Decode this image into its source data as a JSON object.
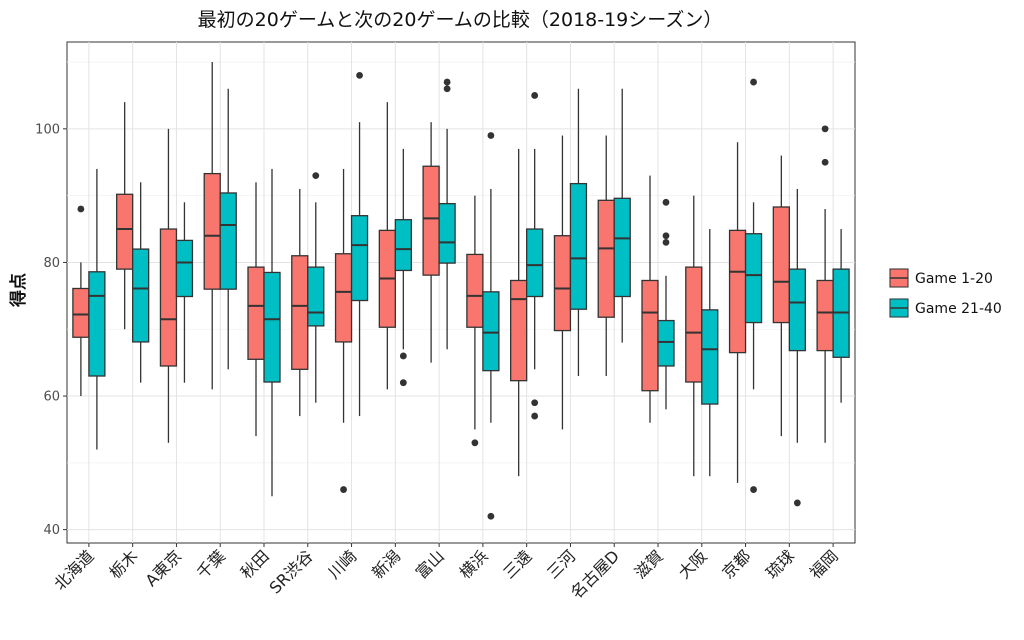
{
  "chart_data": {
    "type": "boxplot",
    "title": "最初の20ゲームと次の20ゲームの比較（2018-19シーズン）",
    "xlabel": "",
    "ylabel": "得点",
    "ylim": [
      38,
      113
    ],
    "yticks": [
      40,
      60,
      80,
      100
    ],
    "grid": true,
    "legend_position": "right",
    "categories": [
      "北海道",
      "栃木",
      "A東京",
      "千葉",
      "秋田",
      "SR渋谷",
      "川崎",
      "新潟",
      "富山",
      "横浜",
      "三遠",
      "三河",
      "名古屋D",
      "滋賀",
      "大阪",
      "京都",
      "琉球",
      "福岡"
    ],
    "series": [
      {
        "name": "Game 1-20",
        "color": "#F8766D",
        "boxes": [
          {
            "min": 60,
            "q1": 68.8,
            "median": 72.2,
            "q3": 76.1,
            "max": 80,
            "outliers": [
              88
            ]
          },
          {
            "min": 70,
            "q1": 79,
            "median": 85,
            "q3": 90.2,
            "max": 104,
            "outliers": []
          },
          {
            "min": 53,
            "q1": 64.5,
            "median": 71.5,
            "q3": 85,
            "max": 100,
            "outliers": []
          },
          {
            "min": 61,
            "q1": 76,
            "median": 84,
            "q3": 93.3,
            "max": 110,
            "outliers": []
          },
          {
            "min": 54,
            "q1": 65.5,
            "median": 73.5,
            "q3": 79.3,
            "max": 92,
            "outliers": []
          },
          {
            "min": 57,
            "q1": 64,
            "median": 73.5,
            "q3": 81,
            "max": 91,
            "outliers": []
          },
          {
            "min": 56,
            "q1": 68.1,
            "median": 75.6,
            "q3": 81.3,
            "max": 94,
            "outliers": [
              46
            ]
          },
          {
            "min": 61,
            "q1": 70.3,
            "median": 77.6,
            "q3": 84.8,
            "max": 104,
            "outliers": []
          },
          {
            "min": 65,
            "q1": 78.1,
            "median": 86.6,
            "q3": 94.4,
            "max": 101,
            "outliers": []
          },
          {
            "min": 55,
            "q1": 70.3,
            "median": 75,
            "q3": 81.2,
            "max": 90,
            "outliers": [
              53
            ]
          },
          {
            "min": 48,
            "q1": 62.3,
            "median": 74.5,
            "q3": 77.3,
            "max": 97,
            "outliers": []
          },
          {
            "min": 55,
            "q1": 69.8,
            "median": 76.1,
            "q3": 84,
            "max": 99,
            "outliers": []
          },
          {
            "min": 63,
            "q1": 71.8,
            "median": 82.1,
            "q3": 89.3,
            "max": 99,
            "outliers": []
          },
          {
            "min": 56,
            "q1": 60.8,
            "median": 72.5,
            "q3": 77.3,
            "max": 93,
            "outliers": []
          },
          {
            "min": 48,
            "q1": 62.1,
            "median": 69.5,
            "q3": 79.3,
            "max": 90,
            "outliers": []
          },
          {
            "min": 47,
            "q1": 66.5,
            "median": 78.6,
            "q3": 84.8,
            "max": 98,
            "outliers": []
          },
          {
            "min": 54,
            "q1": 71,
            "median": 77.1,
            "q3": 88.3,
            "max": 96,
            "outliers": []
          },
          {
            "min": 53,
            "q1": 66.8,
            "median": 72.5,
            "q3": 77.3,
            "max": 88,
            "outliers": [
              100,
              95
            ]
          }
        ]
      },
      {
        "name": "Game 21-40",
        "color": "#00BFC4",
        "boxes": [
          {
            "min": 52,
            "q1": 63,
            "median": 75,
            "q3": 78.6,
            "max": 94,
            "outliers": []
          },
          {
            "min": 62,
            "q1": 68.1,
            "median": 76.1,
            "q3": 82,
            "max": 92,
            "outliers": []
          },
          {
            "min": 62,
            "q1": 74.9,
            "median": 80,
            "q3": 83.3,
            "max": 89,
            "outliers": []
          },
          {
            "min": 64,
            "q1": 76,
            "median": 85.6,
            "q3": 90.4,
            "max": 106,
            "outliers": []
          },
          {
            "min": 45,
            "q1": 62.1,
            "median": 71.5,
            "q3": 78.5,
            "max": 94,
            "outliers": []
          },
          {
            "min": 59,
            "q1": 70.5,
            "median": 72.5,
            "q3": 79.3,
            "max": 89,
            "outliers": [
              93
            ]
          },
          {
            "min": 57,
            "q1": 74.3,
            "median": 82.6,
            "q3": 87,
            "max": 101,
            "outliers": [
              108
            ]
          },
          {
            "min": 67,
            "q1": 78.8,
            "median": 82,
            "q3": 86.4,
            "max": 97,
            "outliers": [
              66,
              62
            ]
          },
          {
            "min": 67,
            "q1": 79.9,
            "median": 83,
            "q3": 88.8,
            "max": 100,
            "outliers": [
              107,
              106
            ]
          },
          {
            "min": 56,
            "q1": 63.8,
            "median": 69.5,
            "q3": 75.6,
            "max": 91,
            "outliers": [
              99,
              42
            ]
          },
          {
            "min": 64,
            "q1": 74.9,
            "median": 79.6,
            "q3": 85,
            "max": 97,
            "outliers": [
              105,
              59,
              57
            ]
          },
          {
            "min": 63,
            "q1": 73,
            "median": 80.6,
            "q3": 91.8,
            "max": 106,
            "outliers": []
          },
          {
            "min": 68,
            "q1": 74.9,
            "median": 83.6,
            "q3": 89.6,
            "max": 106,
            "outliers": []
          },
          {
            "min": 58,
            "q1": 64.5,
            "median": 68.1,
            "q3": 71.3,
            "max": 78,
            "outliers": [
              89,
              84,
              83
            ]
          },
          {
            "min": 48,
            "q1": 58.8,
            "median": 67,
            "q3": 72.9,
            "max": 85,
            "outliers": []
          },
          {
            "min": 61,
            "q1": 71,
            "median": 78.1,
            "q3": 84.3,
            "max": 89,
            "outliers": [
              107,
              46
            ]
          },
          {
            "min": 53,
            "q1": 66.8,
            "median": 74,
            "q3": 79,
            "max": 91,
            "outliers": [
              44
            ]
          },
          {
            "min": 59,
            "q1": 65.8,
            "median": 72.5,
            "q3": 79,
            "max": 85,
            "outliers": []
          }
        ]
      }
    ]
  }
}
